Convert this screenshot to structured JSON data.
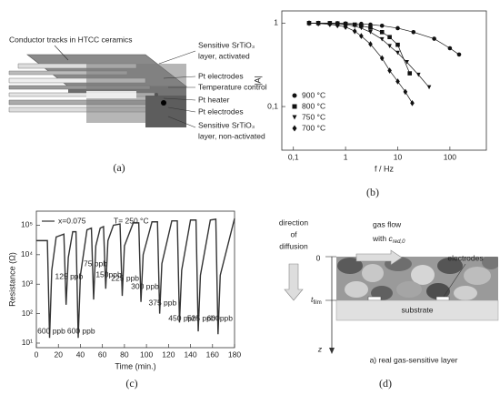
{
  "captions": [
    "(a)",
    "(b)",
    "(c)",
    "(d)"
  ],
  "panel_a": {
    "conductor_tracks": "Conductor tracks in HTCC ceramics",
    "activated_layer": [
      "Sensitive SrTiO₃",
      "layer, activated"
    ],
    "pt_electrodes_top": "Pt electrodes",
    "temperature_control": "Temperature control",
    "pt_heater": "Pt heater",
    "pt_electrodes_bottom": "Pt electrodes",
    "nonactivated_layer": [
      "Sensitive SrTiO₃",
      "layer, non-activated"
    ]
  },
  "panel_d": {
    "diffusion": [
      "direction",
      "of",
      "diffusion"
    ],
    "gas_flow": "gas flow",
    "concentration": {
      "prefix": "with ",
      "symbol": "c",
      "subscript": "red,0"
    },
    "electrodes": "electrodes",
    "surface": "0",
    "thickness": {
      "symbol": "t",
      "subscript": "film"
    },
    "substrate": "substrate",
    "depth": "z",
    "subtitle": "a) real gas-sensitive layer"
  },
  "chart_data": [
    {
      "type": "scatter-line",
      "x_label": "f / Hz",
      "y_label": "|A|",
      "log_x": true,
      "log_y": true,
      "xlim": [
        0.06,
        500
      ],
      "ylim": [
        0.03,
        1.4
      ],
      "xticks": [
        {
          "value": 0.1,
          "label": "0,1"
        },
        1,
        10,
        100
      ],
      "yticks": [
        {
          "value": 0.1,
          "label": "0,1"
        },
        1
      ],
      "legend": "lower left",
      "series": [
        {
          "name": "900 °C",
          "color": "#111",
          "marker": "circle",
          "x": [
            0.2,
            0.3,
            0.5,
            0.7,
            1,
            2,
            3,
            5,
            10,
            20,
            50,
            100,
            150
          ],
          "values": [
            1,
            1,
            1,
            1,
            0.99,
            0.98,
            0.96,
            0.93,
            0.87,
            0.78,
            0.65,
            0.5,
            0.42
          ]
        },
        {
          "name": "800 °C",
          "color": "#111",
          "marker": "square",
          "x": [
            0.2,
            0.3,
            0.5,
            0.7,
            1,
            1.5,
            2,
            3,
            5,
            7,
            10,
            17
          ],
          "values": [
            1,
            1,
            1,
            0.99,
            0.98,
            0.96,
            0.93,
            0.88,
            0.78,
            0.68,
            0.55,
            0.25
          ]
        },
        {
          "name": "750 °C",
          "color": "#111",
          "marker": "triangle-down",
          "x": [
            0.2,
            0.3,
            0.5,
            0.7,
            1,
            1.5,
            2,
            3,
            5,
            7,
            10,
            15,
            25,
            40
          ],
          "values": [
            1,
            1,
            0.99,
            0.98,
            0.96,
            0.92,
            0.87,
            0.78,
            0.64,
            0.53,
            0.44,
            0.34,
            0.24,
            0.17
          ]
        },
        {
          "name": "700 °C",
          "color": "#111",
          "marker": "diamond",
          "x": [
            0.2,
            0.3,
            0.5,
            0.7,
            1,
            1.5,
            2,
            3,
            5,
            7,
            10,
            14,
            19
          ],
          "values": [
            1,
            0.99,
            0.97,
            0.94,
            0.9,
            0.8,
            0.7,
            0.56,
            0.38,
            0.27,
            0.2,
            0.15,
            0.11
          ]
        }
      ]
    },
    {
      "type": "line",
      "x_label": "Time (min.)",
      "y_label": "Resistance (Ω)",
      "log_y": true,
      "annotation": "T= 250 °C",
      "xlim": [
        0,
        180
      ],
      "ylim": [
        7,
        300000
      ],
      "xticks": [
        0,
        20,
        40,
        60,
        80,
        100,
        120,
        140,
        160,
        180
      ],
      "yticks": [
        {
          "value": 10,
          "label": "10¹"
        },
        {
          "value": 100,
          "label": "10²"
        },
        {
          "value": 1000,
          "label": "10³"
        },
        {
          "value": 10000,
          "label": "10⁴"
        },
        {
          "value": 100000,
          "label": "10⁵"
        }
      ],
      "legend": "upper left",
      "x": [
        0,
        10,
        12,
        14,
        18,
        25,
        27,
        29,
        33,
        36,
        38,
        40,
        46,
        50,
        52,
        54,
        58,
        61,
        63,
        65,
        70,
        76,
        78,
        80,
        88,
        93,
        95,
        97,
        105,
        110,
        112,
        114,
        123,
        128,
        130,
        132,
        140,
        145,
        147,
        149,
        158,
        163,
        165,
        167,
        180
      ],
      "series": [
        {
          "name": "x=0.075",
          "color": "#333",
          "values": [
            30000,
            30000,
            15,
            3000,
            40000,
            50000,
            200,
            8000,
            60000,
            60000,
            15,
            2000,
            70000,
            80000,
            300,
            20000,
            80000,
            90000,
            700,
            30000,
            100000,
            110000,
            400,
            20000,
            120000,
            120000,
            250,
            10000,
            130000,
            130000,
            100,
            5000,
            140000,
            140000,
            50,
            3000,
            150000,
            150000,
            25,
            2000,
            150000,
            160000,
            20,
            2000,
            170000
          ]
        }
      ],
      "concentration_labels": [
        "600 ppb",
        "125 ppb",
        "600 ppb",
        "75 ppb",
        "150ppb",
        "225 ppb",
        "300 ppb",
        "375 ppb",
        "450 ppb",
        "525 ppb",
        "600ppb"
      ]
    }
  ]
}
